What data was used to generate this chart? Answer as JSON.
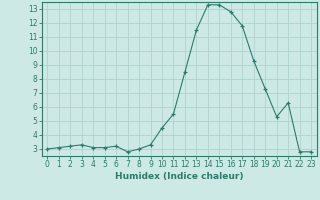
{
  "x": [
    0,
    1,
    2,
    3,
    4,
    5,
    6,
    7,
    8,
    9,
    10,
    11,
    12,
    13,
    14,
    15,
    16,
    17,
    18,
    19,
    20,
    21,
    22,
    23
  ],
  "y": [
    3.0,
    3.1,
    3.2,
    3.3,
    3.1,
    3.1,
    3.2,
    2.8,
    3.0,
    3.3,
    4.5,
    5.5,
    8.5,
    11.5,
    13.3,
    13.3,
    12.8,
    11.8,
    9.3,
    7.3,
    5.3,
    6.3,
    2.8,
    2.8
  ],
  "xlabel": "Humidex (Indice chaleur)",
  "ylim": [
    2.5,
    13.5
  ],
  "xlim": [
    -0.5,
    23.5
  ],
  "yticks": [
    3,
    4,
    5,
    6,
    7,
    8,
    9,
    10,
    11,
    12,
    13
  ],
  "xticks": [
    0,
    1,
    2,
    3,
    4,
    5,
    6,
    7,
    8,
    9,
    10,
    11,
    12,
    13,
    14,
    15,
    16,
    17,
    18,
    19,
    20,
    21,
    22,
    23
  ],
  "line_color": "#2e7b6b",
  "marker": "+",
  "bg_color": "#cce9e5",
  "grid_color": "#aacfca",
  "tick_label_fontsize": 5.5,
  "xlabel_fontsize": 6.5,
  "xlabel_color": "#2e7b6b"
}
